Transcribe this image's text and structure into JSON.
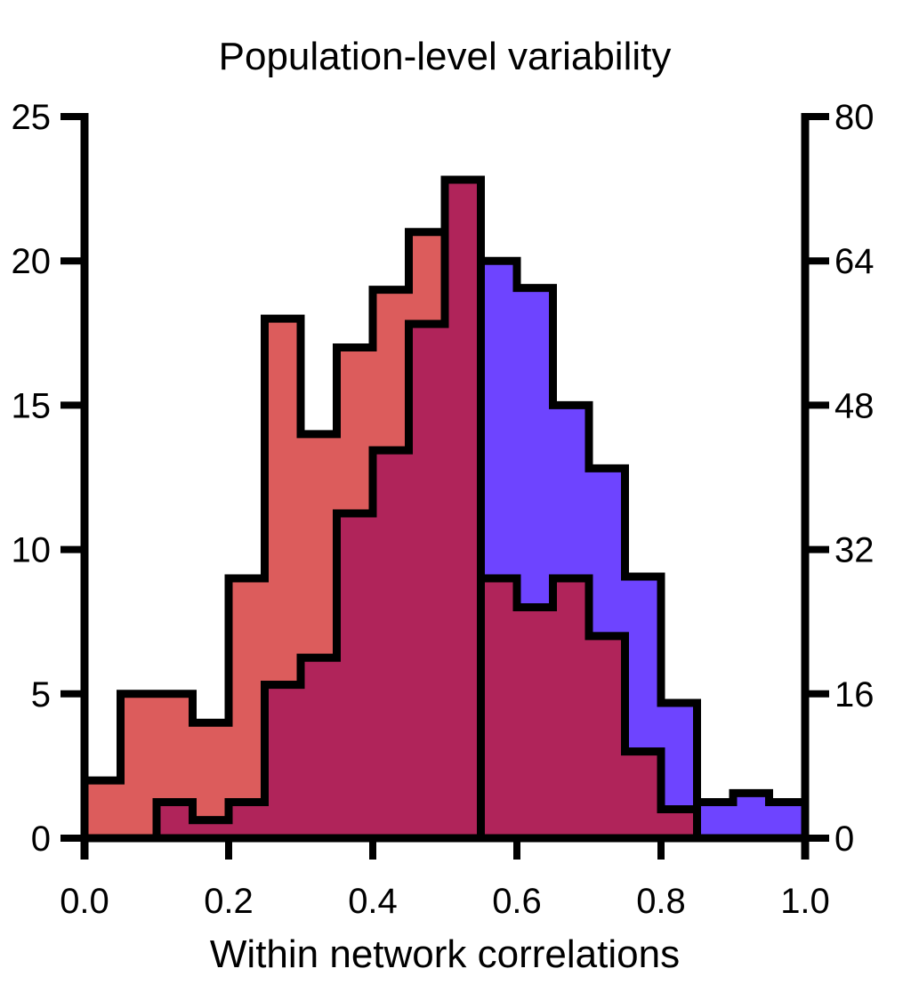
{
  "colors": {
    "red_series": "#dc5c5c",
    "blue_series": "#6e44ff",
    "overlap": "#b0245a",
    "axis": "#000000"
  },
  "chart_data": {
    "type": "histogram",
    "title": "Population-level variability",
    "xlabel": "Within network correlations",
    "ylabel": "",
    "xlim": [
      0,
      1
    ],
    "x_ticks": [
      "0.0",
      "0.2",
      "0.4",
      "0.6",
      "0.8",
      "1.0"
    ],
    "y_left_lim": [
      0,
      25
    ],
    "y_left_ticks": [
      "0",
      "5",
      "10",
      "15",
      "20",
      "25"
    ],
    "y_right_lim": [
      0,
      80
    ],
    "y_right_ticks": [
      "0",
      "16",
      "32",
      "48",
      "64",
      "80"
    ],
    "grid": false,
    "legend": "none",
    "series": [
      {
        "axis": "left",
        "color": "red",
        "bin_edges": [
          0.0,
          0.05,
          0.15,
          0.2,
          0.25,
          0.3,
          0.35,
          0.4,
          0.45,
          0.5,
          1.0
        ],
        "values": [
          2,
          5,
          4,
          9,
          18,
          14,
          17,
          19,
          21,
          0
        ]
      },
      {
        "axis": "right",
        "color": "blue",
        "bin_edges": [
          0.1,
          0.15,
          0.2,
          0.25,
          0.3,
          0.35,
          0.4,
          0.45,
          0.5,
          0.55,
          0.6,
          0.65,
          0.7,
          0.75,
          0.8,
          0.85,
          0.9,
          0.95,
          1.0
        ],
        "values": [
          4,
          2,
          4,
          17,
          20,
          36,
          43,
          57,
          73,
          64,
          61,
          48,
          41,
          29,
          15,
          4,
          5,
          4
        ]
      },
      {
        "axis": "left",
        "color": "red",
        "bin_edges": [
          0.55,
          0.6,
          0.65,
          0.7,
          0.75,
          0.8,
          0.85,
          0.9
        ],
        "values": [
          9,
          8,
          9,
          7,
          3,
          1,
          0
        ]
      }
    ]
  }
}
